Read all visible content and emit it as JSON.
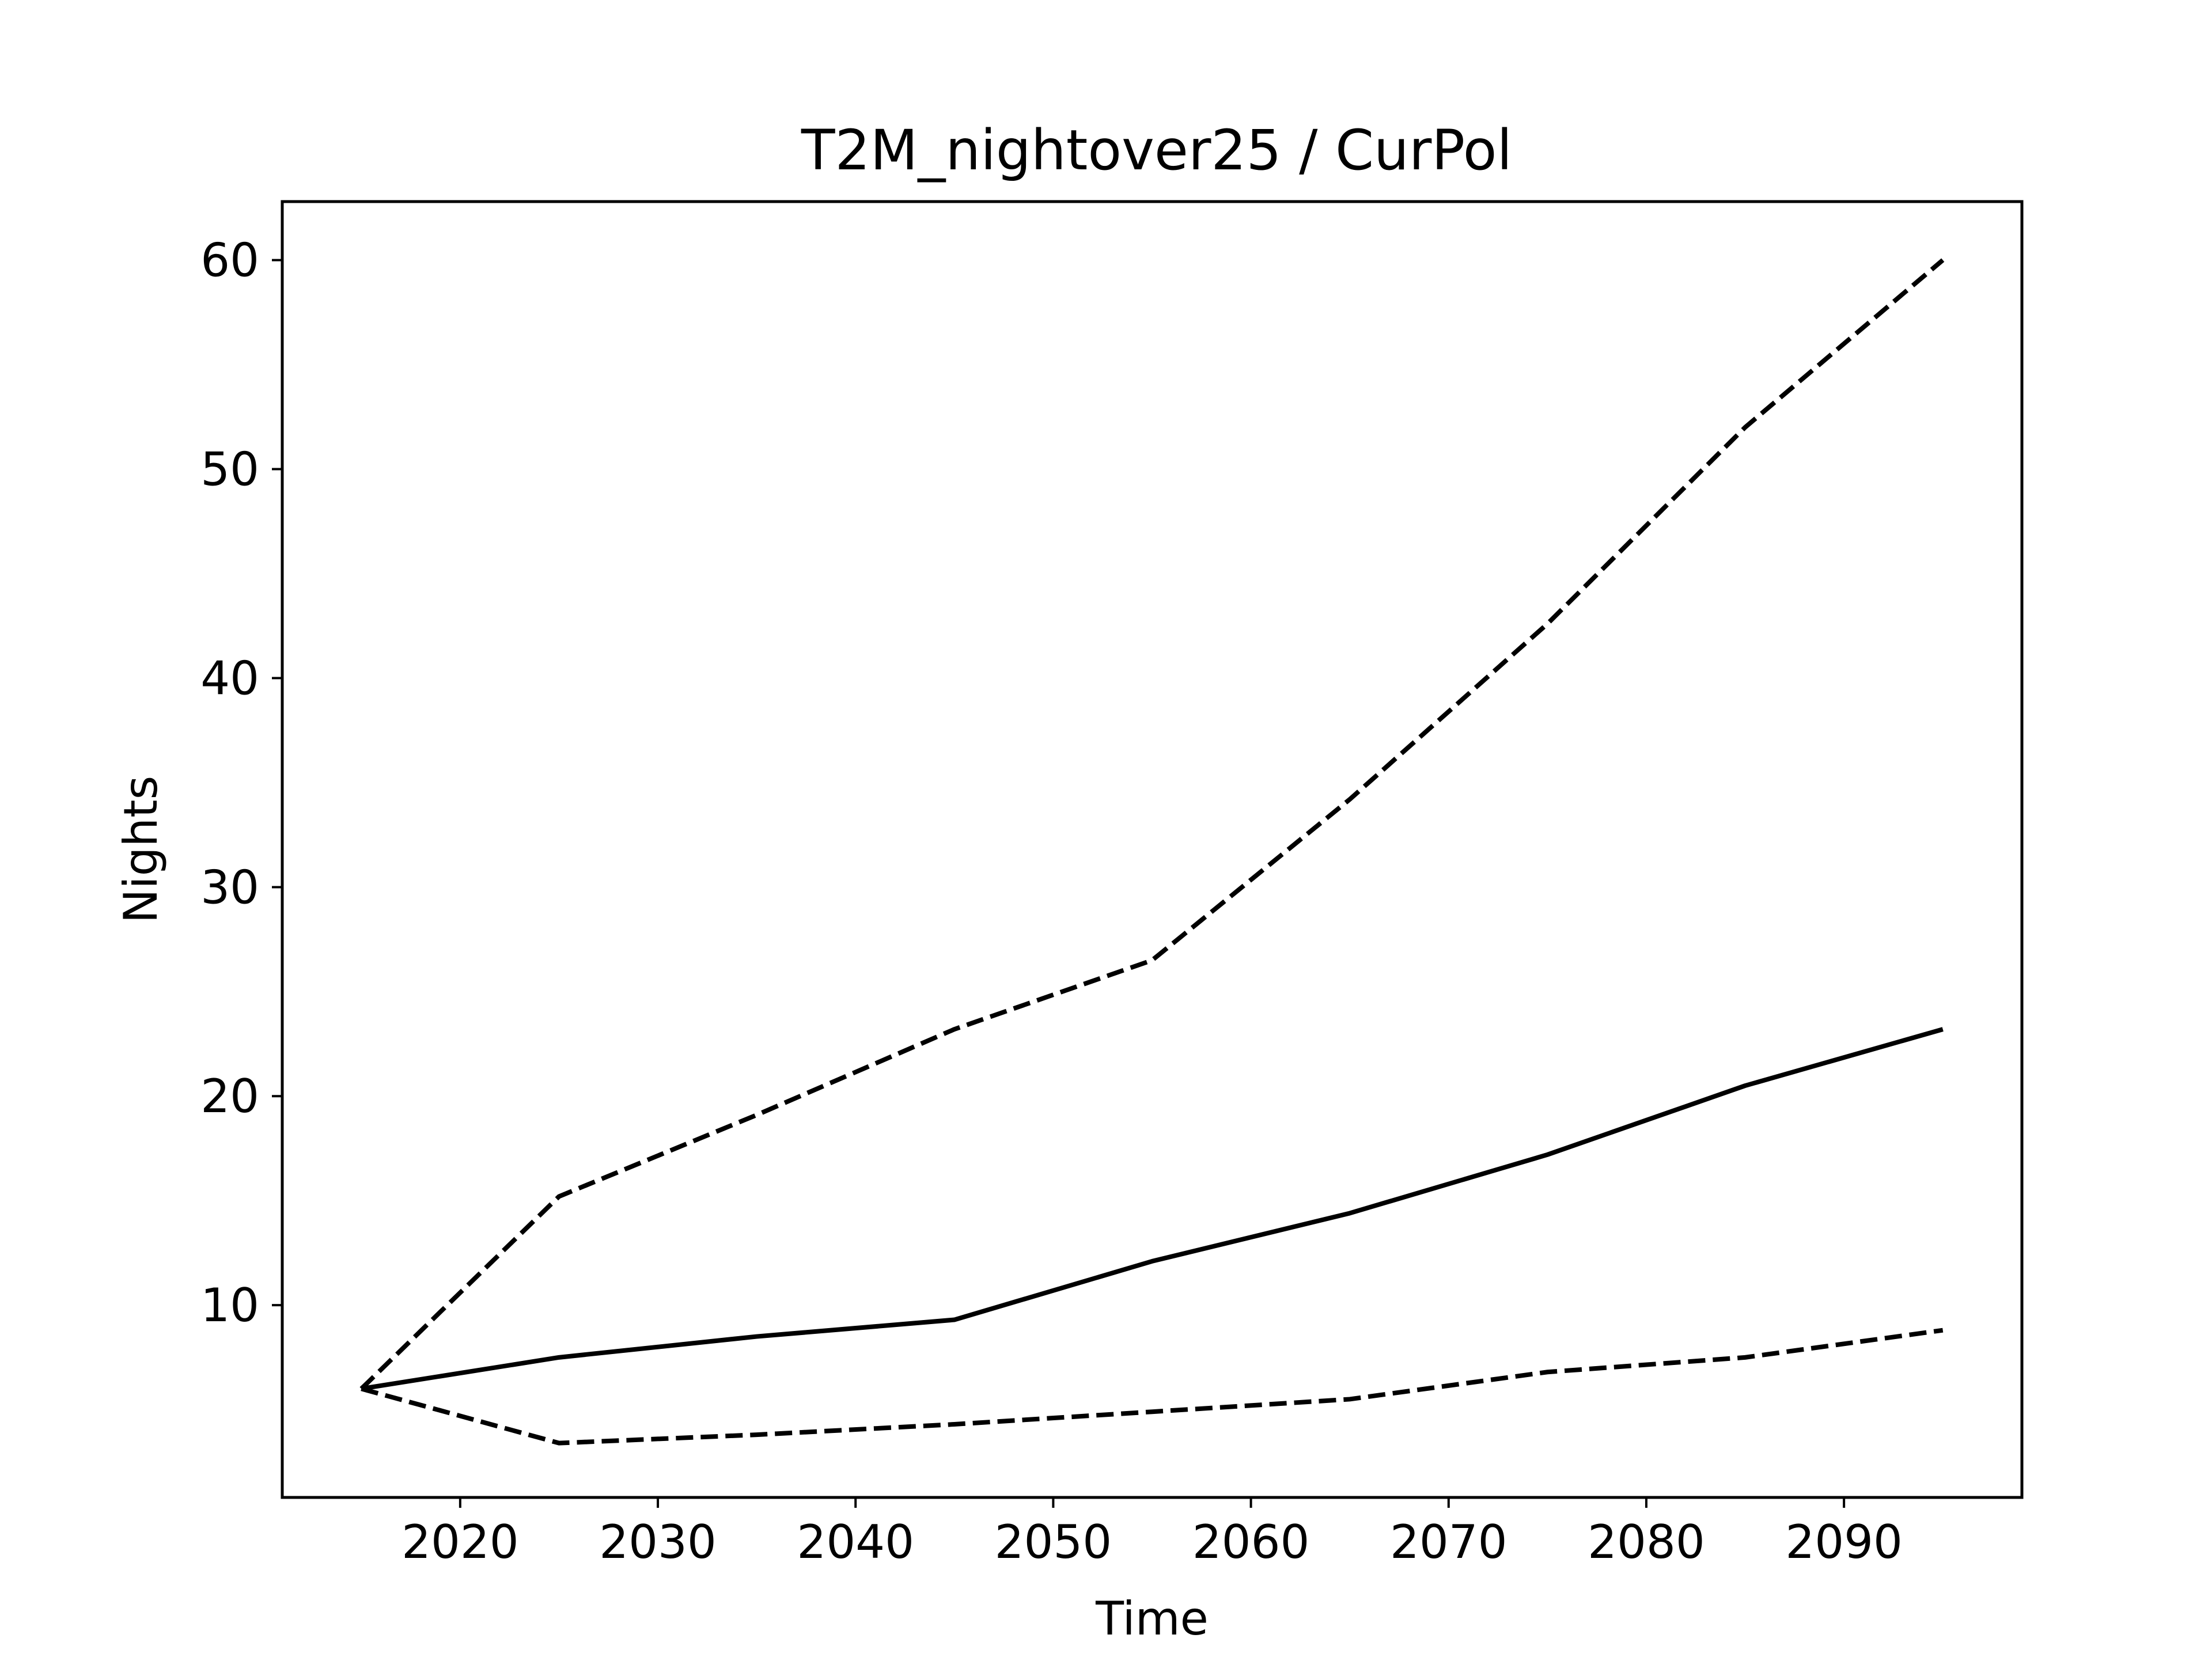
{
  "chart_data": {
    "type": "line",
    "title": "T2M_nightover25 / CurPol",
    "xlabel": "Time",
    "ylabel": "Nights",
    "xlim": [
      2011,
      2099
    ],
    "ylim": [
      0.8,
      62.8
    ],
    "xticks": [
      2020,
      2030,
      2040,
      2050,
      2060,
      2070,
      2080,
      2090
    ],
    "yticks": [
      10,
      20,
      30,
      40,
      50,
      60
    ],
    "grid": false,
    "legend": "none",
    "x": [
      2015,
      2025,
      2035,
      2045,
      2055,
      2065,
      2075,
      2085,
      2095
    ],
    "series": [
      {
        "style": "dashed",
        "color": "#000000",
        "values": [
          6.0,
          15.2,
          19.1,
          23.2,
          26.5,
          34.2,
          42.6,
          52.0,
          60.0
        ]
      },
      {
        "style": "solid",
        "color": "#000000",
        "values": [
          6.0,
          7.5,
          8.5,
          9.3,
          12.1,
          14.4,
          17.2,
          20.5,
          23.2
        ]
      },
      {
        "style": "dashed",
        "color": "#000000",
        "values": [
          6.0,
          3.4,
          3.8,
          4.3,
          4.9,
          5.5,
          6.8,
          7.5,
          8.8
        ]
      }
    ]
  }
}
